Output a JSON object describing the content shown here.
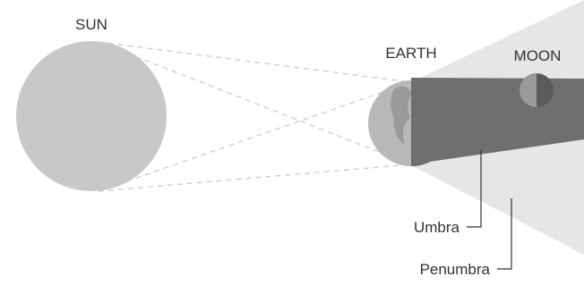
{
  "labels": {
    "sun": "SUN",
    "earth": "EARTH",
    "moon": "MOON",
    "umbra": "Umbra",
    "penumbra": "Penumbra"
  }
}
